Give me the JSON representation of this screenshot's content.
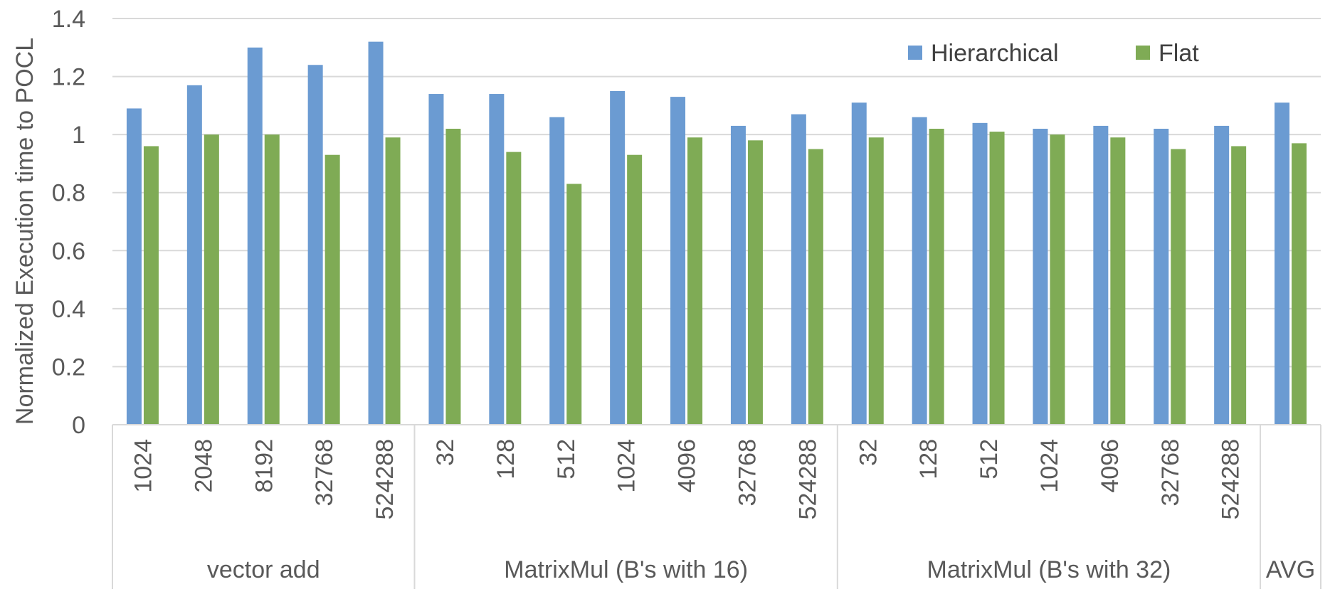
{
  "chart_data": {
    "type": "bar",
    "ylabel": "Normalized Execution time to POCL",
    "ylim": [
      0,
      1.4
    ],
    "yticks": [
      0,
      0.2,
      0.4,
      0.6,
      0.8,
      1,
      1.2,
      1.4
    ],
    "ytick_labels": [
      "0",
      "0.2",
      "0.4",
      "0.6",
      "0.8",
      "1",
      "1.2",
      "1.4"
    ],
    "grid": true,
    "legend_position": "top-right",
    "groups": [
      {
        "label": "vector add",
        "categories": [
          "1024",
          "2048",
          "8192",
          "32768",
          "524288"
        ]
      },
      {
        "label": "MatrixMul (B's with 16)",
        "categories": [
          "32",
          "128",
          "512",
          "1024",
          "4096",
          "32768",
          "524288"
        ]
      },
      {
        "label": "MatrixMul (B's with 32)",
        "categories": [
          "32",
          "128",
          "512",
          "1024",
          "4096",
          "32768",
          "524288"
        ]
      },
      {
        "label": "AVG",
        "categories": [
          ""
        ]
      }
    ],
    "series": [
      {
        "name": "Hierarchical",
        "color": "#6b9bd2",
        "values": [
          1.09,
          1.17,
          1.3,
          1.24,
          1.32,
          1.14,
          1.14,
          1.06,
          1.15,
          1.13,
          1.03,
          1.07,
          1.11,
          1.06,
          1.04,
          1.02,
          1.03,
          1.02,
          1.03,
          1.11
        ]
      },
      {
        "name": "Flat",
        "color": "#7fab55",
        "values": [
          0.96,
          1.0,
          1.0,
          0.93,
          0.99,
          1.02,
          0.94,
          0.83,
          0.93,
          0.99,
          0.98,
          0.95,
          0.99,
          1.02,
          1.01,
          1.0,
          0.99,
          0.95,
          0.96,
          0.97
        ]
      }
    ]
  }
}
